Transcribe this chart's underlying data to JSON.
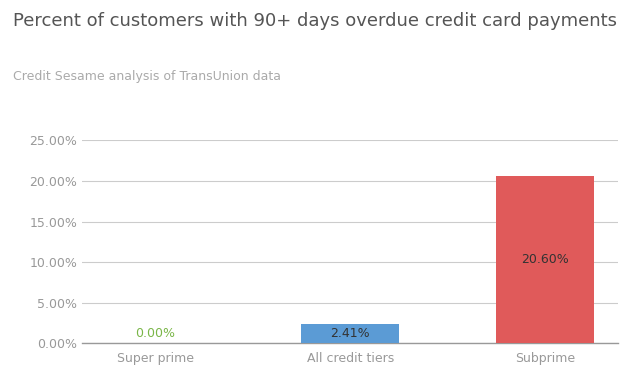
{
  "title": "Percent of customers with 90+ days overdue credit card payments",
  "subtitle": "Credit Sesame analysis of TransUnion data",
  "categories": [
    "Super prime",
    "All credit tiers",
    "Subprime"
  ],
  "values": [
    0.0,
    2.41,
    20.6
  ],
  "bar_colors": [
    "#e8e8e8",
    "#5b9bd5",
    "#e05a5a"
  ],
  "label_colors": [
    "#7ab648",
    "#333333",
    "#333333"
  ],
  "bar_labels": [
    "0.00%",
    "2.41%",
    "20.60%"
  ],
  "ylim": [
    0,
    25
  ],
  "yticks": [
    0,
    5,
    10,
    15,
    20,
    25
  ],
  "ytick_labels": [
    "0.00%",
    "5.00%",
    "10.00%",
    "15.00%",
    "20.00%",
    "25.00%"
  ],
  "title_fontsize": 13,
  "subtitle_fontsize": 9,
  "tick_fontsize": 9,
  "label_fontsize": 9,
  "background_color": "#ffffff",
  "grid_color": "#cccccc",
  "title_color": "#555555",
  "subtitle_color": "#aaaaaa",
  "axis_color": "#999999"
}
